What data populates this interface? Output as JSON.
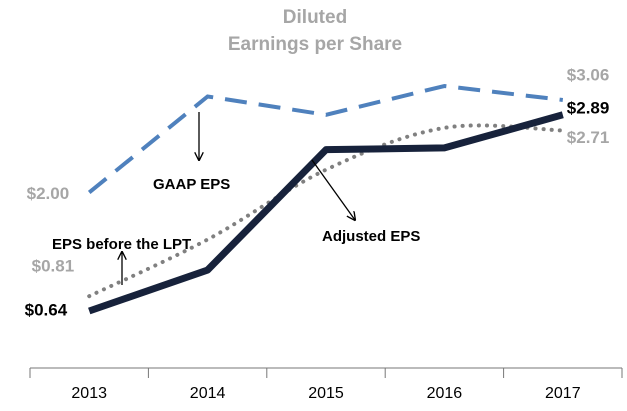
{
  "chart_data": {
    "type": "line",
    "title": [
      "Diluted",
      "Earnings per Share"
    ],
    "categories": [
      "2013",
      "2014",
      "2015",
      "2016",
      "2017"
    ],
    "series": [
      {
        "name": "GAAP EPS",
        "color": "#4f81bd",
        "style": "dashed",
        "values": [
          2.0,
          3.1,
          2.89,
          3.22,
          3.06
        ],
        "value_labels": [
          "$2.00",
          null,
          null,
          null,
          "$3.06"
        ]
      },
      {
        "name": "EPS before the LPT",
        "color": "#808080",
        "style": "dotted",
        "values": [
          0.81,
          1.46,
          2.26,
          2.74,
          2.71
        ],
        "value_labels": [
          "$0.81",
          null,
          null,
          null,
          "$2.71"
        ]
      },
      {
        "name": "Adjusted EPS",
        "color": "#17223b",
        "style": "solid",
        "values": [
          0.64,
          1.11,
          2.49,
          2.51,
          2.89
        ],
        "value_labels": [
          "$0.64",
          null,
          null,
          null,
          "$2.89"
        ]
      }
    ]
  }
}
